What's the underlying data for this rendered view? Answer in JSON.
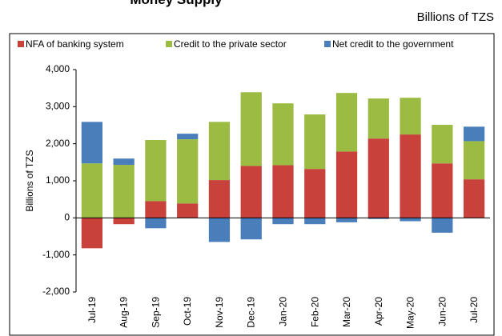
{
  "chart_data": {
    "type": "stacked_bar",
    "title": "Money Supply",
    "subtitle": "Billions of TZS",
    "y_label": "Billions of TZS",
    "categories": [
      "Jul-19",
      "Aug-19",
      "Sep-19",
      "Oct-19",
      "Nov-19",
      "Dec-19",
      "Jan-20",
      "Feb-20",
      "Mar-20",
      "Apr-20",
      "May-20",
      "Jun-20",
      "Jul-20"
    ],
    "series": [
      {
        "name": "NFA of banking system",
        "color": "#c8413b",
        "values": [
          -820,
          -170,
          450,
          390,
          1020,
          1400,
          1420,
          1320,
          1790,
          2140,
          2250,
          1470,
          1040
        ]
      },
      {
        "name": "Credit to the private sector",
        "color": "#9bbb43",
        "values": [
          1470,
          1430,
          1650,
          1730,
          1570,
          1990,
          1670,
          1470,
          1580,
          1080,
          990,
          1040,
          1030
        ]
      },
      {
        "name": "Net credit to the government",
        "color": "#4a7ebb",
        "values": [
          1120,
          170,
          -280,
          150,
          -650,
          -580,
          -170,
          -170,
          -120,
          -30,
          -90,
          -400,
          390
        ]
      }
    ],
    "ylim": [
      -2000,
      4000
    ],
    "yticks": [
      {
        "value": -2000,
        "label": "-2,000"
      },
      {
        "value": -1000,
        "label": "-1,000"
      },
      0,
      {
        "value": 1000,
        "label": "1,000"
      },
      {
        "value": 2000,
        "label": "2,000"
      },
      {
        "value": 3000,
        "label": "3,000"
      },
      {
        "value": 4000,
        "label": "4,000"
      }
    ],
    "legend": "top"
  }
}
